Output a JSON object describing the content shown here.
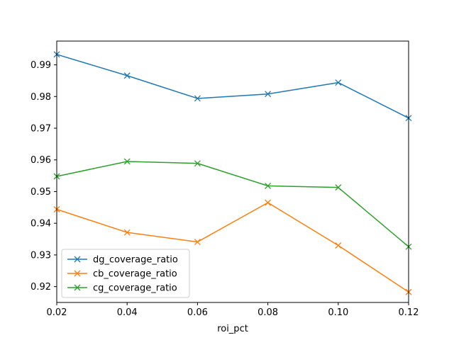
{
  "chart_data": {
    "type": "line",
    "title": "",
    "xlabel": "roi_pct",
    "ylabel": "",
    "x": [
      0.02,
      0.04,
      0.06,
      0.08,
      0.1,
      0.12
    ],
    "xlim": [
      0.02,
      0.12
    ],
    "ylim": [
      0.915,
      0.9975
    ],
    "xticks": [
      0.02,
      0.04,
      0.06,
      0.08,
      0.1,
      0.12
    ],
    "xtick_labels": [
      "0.02",
      "0.04",
      "0.06",
      "0.08",
      "0.10",
      "0.12"
    ],
    "yticks": [
      0.92,
      0.93,
      0.94,
      0.95,
      0.96,
      0.97,
      0.98,
      0.99
    ],
    "ytick_labels": [
      "0.92",
      "0.93",
      "0.94",
      "0.95",
      "0.96",
      "0.97",
      "0.98",
      "0.99"
    ],
    "marker": "x",
    "grid": false,
    "legend_position": "lower-left",
    "series": [
      {
        "name": "dg_coverage_ratio",
        "color": "#1f77b4",
        "values": [
          0.9933,
          0.9866,
          0.9794,
          0.9808,
          0.9844,
          0.9732
        ]
      },
      {
        "name": "cb_coverage_ratio",
        "color": "#ff7f0e",
        "values": [
          0.9444,
          0.9371,
          0.9341,
          0.9465,
          0.933,
          0.9183
        ]
      },
      {
        "name": "cg_coverage_ratio",
        "color": "#2ca02c",
        "values": [
          0.9548,
          0.9595,
          0.9589,
          0.9518,
          0.9513,
          0.9326
        ]
      }
    ]
  }
}
